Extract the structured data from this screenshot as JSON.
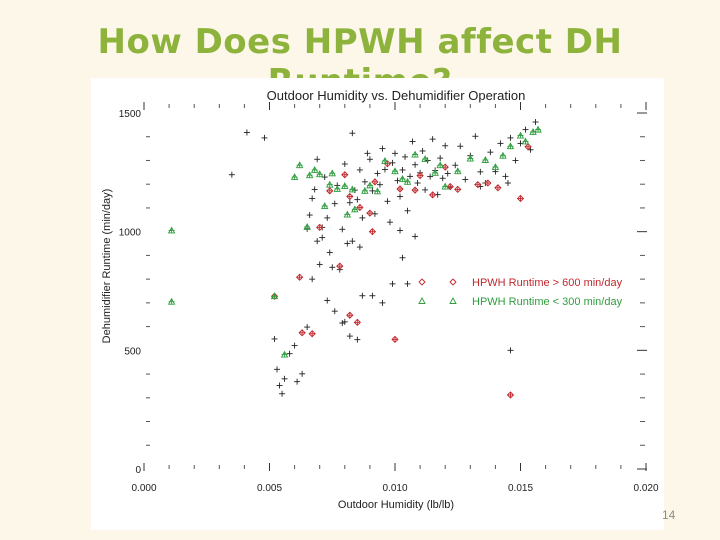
{
  "slide": {
    "title": "How Does HPWH affect DH Runtime?",
    "page_number": "14"
  },
  "colors": {
    "background": "#fcf7e8",
    "title": "#8db33c",
    "base_points": "#222222",
    "high_series": "#c0282d",
    "low_series": "#2e9e3e"
  },
  "chart_data": {
    "type": "scatter",
    "title": "Outdoor Humidity vs. Dehumidifier Operation",
    "xlabel": "Outdoor Humidity (lb/lb)",
    "ylabel": "Dehumidifier Runtime (min/day)",
    "xlim": [
      0.0,
      0.02
    ],
    "ylim": [
      0,
      1500
    ],
    "x_ticks": [
      "0.000",
      "0.005",
      "0.010",
      "0.015",
      "0.020"
    ],
    "y_ticks": [
      "0",
      "500",
      "1000",
      "1500"
    ],
    "grid": false,
    "legend_position": "right-middle",
    "series": [
      {
        "name": "",
        "marker": "plus",
        "color": "#222222",
        "points": [
          [
            0.0035,
            1240
          ],
          [
            0.0041,
            1418
          ],
          [
            0.0048,
            1395
          ],
          [
            0.0052,
            548
          ],
          [
            0.0053,
            420
          ],
          [
            0.0054,
            352
          ],
          [
            0.0055,
            317
          ],
          [
            0.0056,
            380
          ],
          [
            0.0058,
            486
          ],
          [
            0.0061,
            368
          ],
          [
            0.0063,
            401
          ],
          [
            0.0065,
            598
          ],
          [
            0.0066,
            1070
          ],
          [
            0.0067,
            1140
          ],
          [
            0.0068,
            1178
          ],
          [
            0.0069,
            1305
          ],
          [
            0.007,
            862
          ],
          [
            0.0071,
            975
          ],
          [
            0.0072,
            1230
          ],
          [
            0.0073,
            1058
          ],
          [
            0.0074,
            912
          ],
          [
            0.0075,
            850
          ],
          [
            0.0076,
            1118
          ],
          [
            0.0077,
            1195
          ],
          [
            0.0078,
            840
          ],
          [
            0.0079,
            615
          ],
          [
            0.008,
            1285
          ],
          [
            0.0081,
            950
          ],
          [
            0.0082,
            1122
          ],
          [
            0.0083,
            1415
          ],
          [
            0.0084,
            1175
          ],
          [
            0.0085,
            1135
          ],
          [
            0.0086,
            1260
          ],
          [
            0.0087,
            1058
          ],
          [
            0.0088,
            1210
          ],
          [
            0.0089,
            1330
          ],
          [
            0.009,
            1305
          ],
          [
            0.0091,
            1172
          ],
          [
            0.0092,
            1075
          ],
          [
            0.0093,
            1245
          ],
          [
            0.0094,
            1198
          ],
          [
            0.0095,
            1350
          ],
          [
            0.0096,
            1262
          ],
          [
            0.0097,
            1128
          ],
          [
            0.0098,
            1040
          ],
          [
            0.0099,
            1290
          ],
          [
            0.01,
            1330
          ],
          [
            0.0101,
            1215
          ],
          [
            0.0102,
            1148
          ],
          [
            0.0103,
            1260
          ],
          [
            0.0104,
            1315
          ],
          [
            0.0105,
            1088
          ],
          [
            0.0106,
            1233
          ],
          [
            0.0107,
            1380
          ],
          [
            0.0108,
            1282
          ],
          [
            0.0109,
            1205
          ],
          [
            0.011,
            1248
          ],
          [
            0.0111,
            1340
          ],
          [
            0.0112,
            1176
          ],
          [
            0.0113,
            1300
          ],
          [
            0.0114,
            1232
          ],
          [
            0.0115,
            1390
          ],
          [
            0.0116,
            1258
          ],
          [
            0.0117,
            1156
          ],
          [
            0.0118,
            1310
          ],
          [
            0.0119,
            1225
          ],
          [
            0.012,
            1362
          ],
          [
            0.0121,
            1245
          ],
          [
            0.0122,
            1188
          ],
          [
            0.0124,
            1280
          ],
          [
            0.0126,
            1360
          ],
          [
            0.0128,
            1220
          ],
          [
            0.013,
            1320
          ],
          [
            0.0132,
            1402
          ],
          [
            0.0134,
            1252
          ],
          [
            0.0136,
            1205
          ],
          [
            0.0138,
            1335
          ],
          [
            0.014,
            1253
          ],
          [
            0.0142,
            1372
          ],
          [
            0.0144,
            1233
          ],
          [
            0.0146,
            1395
          ],
          [
            0.0148,
            1300
          ],
          [
            0.015,
            1372
          ],
          [
            0.0152,
            1430
          ],
          [
            0.0154,
            1345
          ],
          [
            0.0156,
            1462
          ],
          [
            0.0079,
            1010
          ],
          [
            0.0083,
            960
          ],
          [
            0.0086,
            935
          ],
          [
            0.0091,
            730
          ],
          [
            0.0095,
            700
          ],
          [
            0.0099,
            780
          ],
          [
            0.0103,
            890
          ],
          [
            0.0108,
            980
          ],
          [
            0.0073,
            710
          ],
          [
            0.0076,
            665
          ],
          [
            0.008,
            620
          ],
          [
            0.0082,
            560
          ],
          [
            0.0087,
            730
          ],
          [
            0.0067,
            800
          ],
          [
            0.0069,
            960
          ],
          [
            0.0071,
            1018
          ],
          [
            0.0065,
            1012
          ],
          [
            0.006,
            520
          ],
          [
            0.0102,
            1005
          ],
          [
            0.0085,
            545
          ],
          [
            0.0105,
            780
          ],
          [
            0.0146,
            500
          ],
          [
            0.0134,
            1190
          ],
          [
            0.0145,
            1205
          ]
        ]
      },
      {
        "name": "HPWH Runtime > 600 min/day",
        "marker": "diamond",
        "color": "#c0282d",
        "points": [
          [
            0.0052,
            728
          ],
          [
            0.0062,
            808
          ],
          [
            0.007,
            1018
          ],
          [
            0.0074,
            1172
          ],
          [
            0.0078,
            855
          ],
          [
            0.008,
            1240
          ],
          [
            0.0082,
            1148
          ],
          [
            0.0086,
            1102
          ],
          [
            0.009,
            1078
          ],
          [
            0.0091,
            1000
          ],
          [
            0.0092,
            1210
          ],
          [
            0.0097,
            1286
          ],
          [
            0.01,
            546
          ],
          [
            0.0102,
            1180
          ],
          [
            0.0108,
            1175
          ],
          [
            0.011,
            1236
          ],
          [
            0.0115,
            1155
          ],
          [
            0.012,
            1272
          ],
          [
            0.0122,
            1190
          ],
          [
            0.0125,
            1178
          ],
          [
            0.0133,
            1198
          ],
          [
            0.0137,
            1205
          ],
          [
            0.0141,
            1185
          ],
          [
            0.0146,
            312
          ],
          [
            0.015,
            1140
          ],
          [
            0.0153,
            1358
          ],
          [
            0.0082,
            648
          ],
          [
            0.0085,
            618
          ],
          [
            0.0063,
            574
          ],
          [
            0.0067,
            570
          ]
        ]
      },
      {
        "name": "HPWH Runtime < 300 min/day",
        "marker": "triangle",
        "color": "#2e9e3e",
        "points": [
          [
            0.0011,
            1005
          ],
          [
            0.0011,
            705
          ],
          [
            0.0052,
            728
          ],
          [
            0.0056,
            482
          ],
          [
            0.0062,
            1280
          ],
          [
            0.0066,
            1238
          ],
          [
            0.0068,
            1260
          ],
          [
            0.007,
            1242
          ],
          [
            0.0074,
            1198
          ],
          [
            0.0075,
            1246
          ],
          [
            0.0077,
            1180
          ],
          [
            0.008,
            1192
          ],
          [
            0.0083,
            1178
          ],
          [
            0.0084,
            1094
          ],
          [
            0.0088,
            1172
          ],
          [
            0.009,
            1195
          ],
          [
            0.0093,
            1170
          ],
          [
            0.0096,
            1298
          ],
          [
            0.01,
            1255
          ],
          [
            0.0103,
            1222
          ],
          [
            0.0105,
            1210
          ],
          [
            0.0108,
            1325
          ],
          [
            0.0112,
            1306
          ],
          [
            0.0116,
            1248
          ],
          [
            0.0118,
            1280
          ],
          [
            0.012,
            1190
          ],
          [
            0.0125,
            1255
          ],
          [
            0.013,
            1308
          ],
          [
            0.0136,
            1302
          ],
          [
            0.014,
            1272
          ],
          [
            0.0143,
            1320
          ],
          [
            0.0146,
            1360
          ],
          [
            0.015,
            1405
          ],
          [
            0.0152,
            1380
          ],
          [
            0.0155,
            1420
          ],
          [
            0.0157,
            1430
          ],
          [
            0.006,
            1230
          ],
          [
            0.0065,
            1020
          ],
          [
            0.0072,
            1108
          ],
          [
            0.0081,
            1072
          ]
        ]
      }
    ]
  }
}
